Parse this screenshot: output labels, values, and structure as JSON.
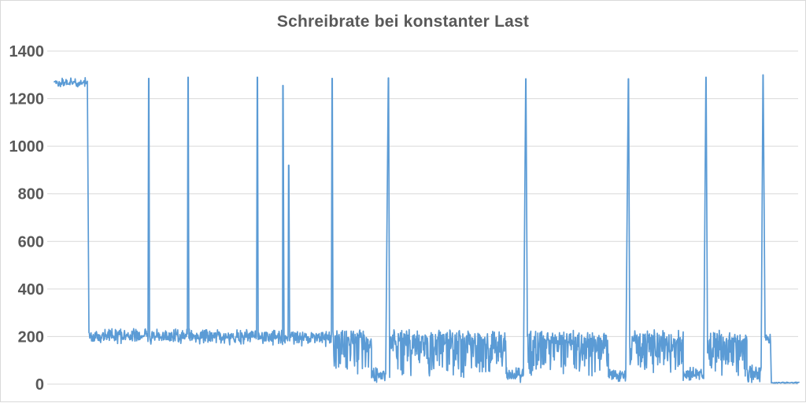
{
  "window": {
    "background_color": "#ffffff",
    "frame_border_color": "#d9d9d9"
  },
  "chart_data": {
    "type": "line",
    "title": "Schreibrate bei konstanter Last",
    "title_color": "#595959",
    "xlabel": "",
    "ylabel": "",
    "ylim": [
      0,
      1400
    ],
    "yticks": [
      0,
      200,
      400,
      600,
      800,
      1000,
      1200,
      1400
    ],
    "x_tick_labels_visible": false,
    "grid": true,
    "gridline_color": "#d9d9d9",
    "axis_label_color": "#595959",
    "legend": "none",
    "line_color": "#5b9bd5",
    "noise_seed": 7,
    "series": [
      {
        "name": "Schreibrate",
        "baseline_segments": [
          {
            "t0": 0.0032,
            "t1": 0.0474,
            "base": 1272,
            "up": 18,
            "down": 25,
            "bias": 1.0
          },
          {
            "t0": 0.0495,
            "t1": 0.1286,
            "base": 205,
            "up": 30,
            "down": 38,
            "bias": 1.3
          },
          {
            "t0": 0.1307,
            "t1": 0.1812,
            "base": 205,
            "up": 30,
            "down": 38,
            "bias": 1.3
          },
          {
            "t0": 0.1833,
            "t1": 0.2739,
            "base": 203,
            "up": 32,
            "down": 40,
            "bias": 1.3
          },
          {
            "t0": 0.2761,
            "t1": 0.3087,
            "base": 200,
            "up": 30,
            "down": 40,
            "bias": 1.3
          },
          {
            "t0": 0.3108,
            "t1": 0.3161,
            "base": 200,
            "up": 25,
            "down": 30,
            "bias": 1.0
          },
          {
            "t0": 0.3182,
            "t1": 0.3741,
            "base": 200,
            "up": 30,
            "down": 45,
            "bias": 1.3
          },
          {
            "t0": 0.3762,
            "t1": 0.4278,
            "base": 190,
            "up": 40,
            "down": 150,
            "bias": 2.2
          },
          {
            "t0": 0.4278,
            "t1": 0.4468,
            "base": 30,
            "up": 45,
            "down": 28,
            "bias": 1.0
          },
          {
            "t0": 0.4521,
            "t1": 0.608,
            "base": 185,
            "up": 45,
            "down": 160,
            "bias": 2.0
          },
          {
            "t0": 0.608,
            "t1": 0.6312,
            "base": 28,
            "up": 50,
            "down": 26,
            "bias": 1.5
          },
          {
            "t0": 0.6365,
            "t1": 0.745,
            "base": 185,
            "up": 45,
            "down": 160,
            "bias": 2.0
          },
          {
            "t0": 0.745,
            "t1": 0.7682,
            "base": 25,
            "up": 45,
            "down": 23,
            "bias": 1.5
          },
          {
            "t0": 0.7734,
            "t1": 0.8451,
            "base": 185,
            "up": 45,
            "down": 160,
            "bias": 2.0
          },
          {
            "t0": 0.8451,
            "t1": 0.8725,
            "base": 25,
            "up": 50,
            "down": 23,
            "bias": 1.5
          },
          {
            "t0": 0.8777,
            "t1": 0.9304,
            "base": 185,
            "up": 45,
            "down": 160,
            "bias": 2.0
          },
          {
            "t0": 0.9304,
            "t1": 0.9494,
            "base": 28,
            "up": 55,
            "down": 26,
            "bias": 1.5
          },
          {
            "t0": 0.9547,
            "t1": 0.962,
            "base": 195,
            "up": 25,
            "down": 30,
            "bias": 1.0
          },
          {
            "t0": 0.9631,
            "t1": 1.0,
            "base": 6,
            "up": 3,
            "down": 3,
            "bias": 1.0
          }
        ],
        "spikes": [
          {
            "t": 0.1296,
            "peak": 1285
          },
          {
            "t": 0.1823,
            "peak": 1290
          },
          {
            "t": 0.275,
            "peak": 1290
          },
          {
            "t": 0.3093,
            "peak": 1255
          },
          {
            "t": 0.317,
            "peak": 920
          },
          {
            "t": 0.3751,
            "peak": 1285
          },
          {
            "t": 0.4505,
            "peak": 1287
          },
          {
            "t": 0.6344,
            "peak": 1283
          },
          {
            "t": 0.7718,
            "peak": 1283
          },
          {
            "t": 0.8756,
            "peak": 1290
          },
          {
            "t": 0.952,
            "peak": 1300
          }
        ]
      }
    ]
  }
}
